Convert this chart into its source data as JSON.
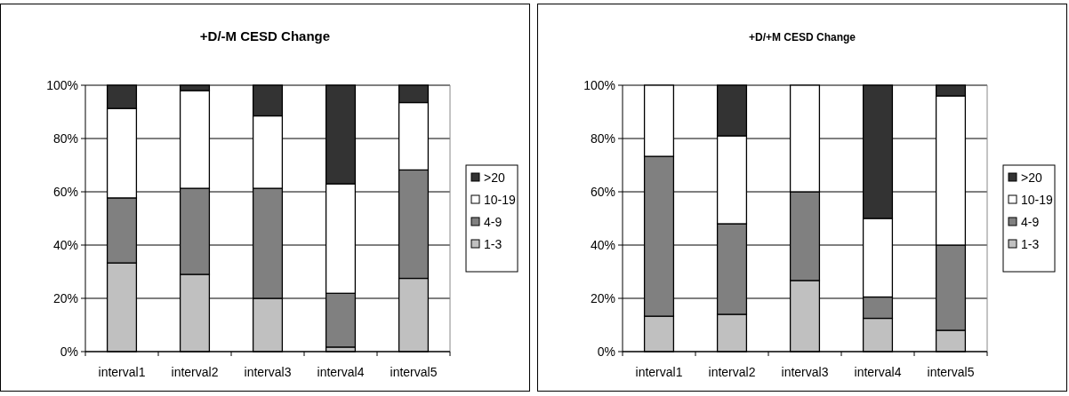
{
  "chart_data": [
    {
      "type": "bar",
      "title": "+D/-M CESD Change",
      "stacked": true,
      "categories": [
        "interval1",
        "interval2",
        "interval3",
        "interval4",
        "interval5"
      ],
      "series": [
        {
          "name": "1-3",
          "color": "#c0c0c0",
          "values": [
            33.3,
            29,
            20,
            1.7,
            27.5
          ]
        },
        {
          "name": "4-9",
          "color": "#808080",
          "values": [
            24.4,
            32.3,
            41.3,
            20.2,
            40.7
          ]
        },
        {
          "name": "10-19",
          "color": "#ffffff",
          "values": [
            33.6,
            36.7,
            27.2,
            41.1,
            25.3
          ]
        },
        {
          "name": ">20",
          "color": "#333333",
          "values": [
            8.7,
            2,
            11.5,
            37,
            6.5
          ]
        }
      ],
      "ylim": [
        0,
        100
      ],
      "yticks": [
        {
          "value": 0,
          "label": "0%"
        },
        {
          "value": 20,
          "label": "20%"
        },
        {
          "value": 40,
          "label": "40%"
        },
        {
          "value": 60,
          "label": "60%"
        },
        {
          "value": 80,
          "label": "80%"
        },
        {
          "value": 100,
          "label": "100%"
        }
      ],
      "grid": "y",
      "legend": "right"
    },
    {
      "type": "bar",
      "title": "+D/+M CESD Change",
      "stacked": true,
      "categories": [
        "interval1",
        "interval2",
        "interval3",
        "interval4",
        "interval5"
      ],
      "series": [
        {
          "name": "1-3",
          "color": "#c0c0c0",
          "values": [
            13.3,
            14,
            26.7,
            12.5,
            8
          ]
        },
        {
          "name": "4-9",
          "color": "#808080",
          "values": [
            60,
            34,
            33.3,
            8,
            32
          ]
        },
        {
          "name": "10-19",
          "color": "#ffffff",
          "values": [
            26.7,
            33,
            40,
            29.5,
            56
          ]
        },
        {
          "name": ">20",
          "color": "#333333",
          "values": [
            0,
            19,
            0,
            50,
            4
          ]
        }
      ],
      "ylim": [
        0,
        100
      ],
      "yticks": [
        {
          "value": 0,
          "label": "0%"
        },
        {
          "value": 20,
          "label": "20%"
        },
        {
          "value": 40,
          "label": "40%"
        },
        {
          "value": 60,
          "label": "60%"
        },
        {
          "value": 80,
          "label": "80%"
        },
        {
          "value": 100,
          "label": "100%"
        }
      ],
      "grid": "y",
      "legend": "right"
    }
  ]
}
